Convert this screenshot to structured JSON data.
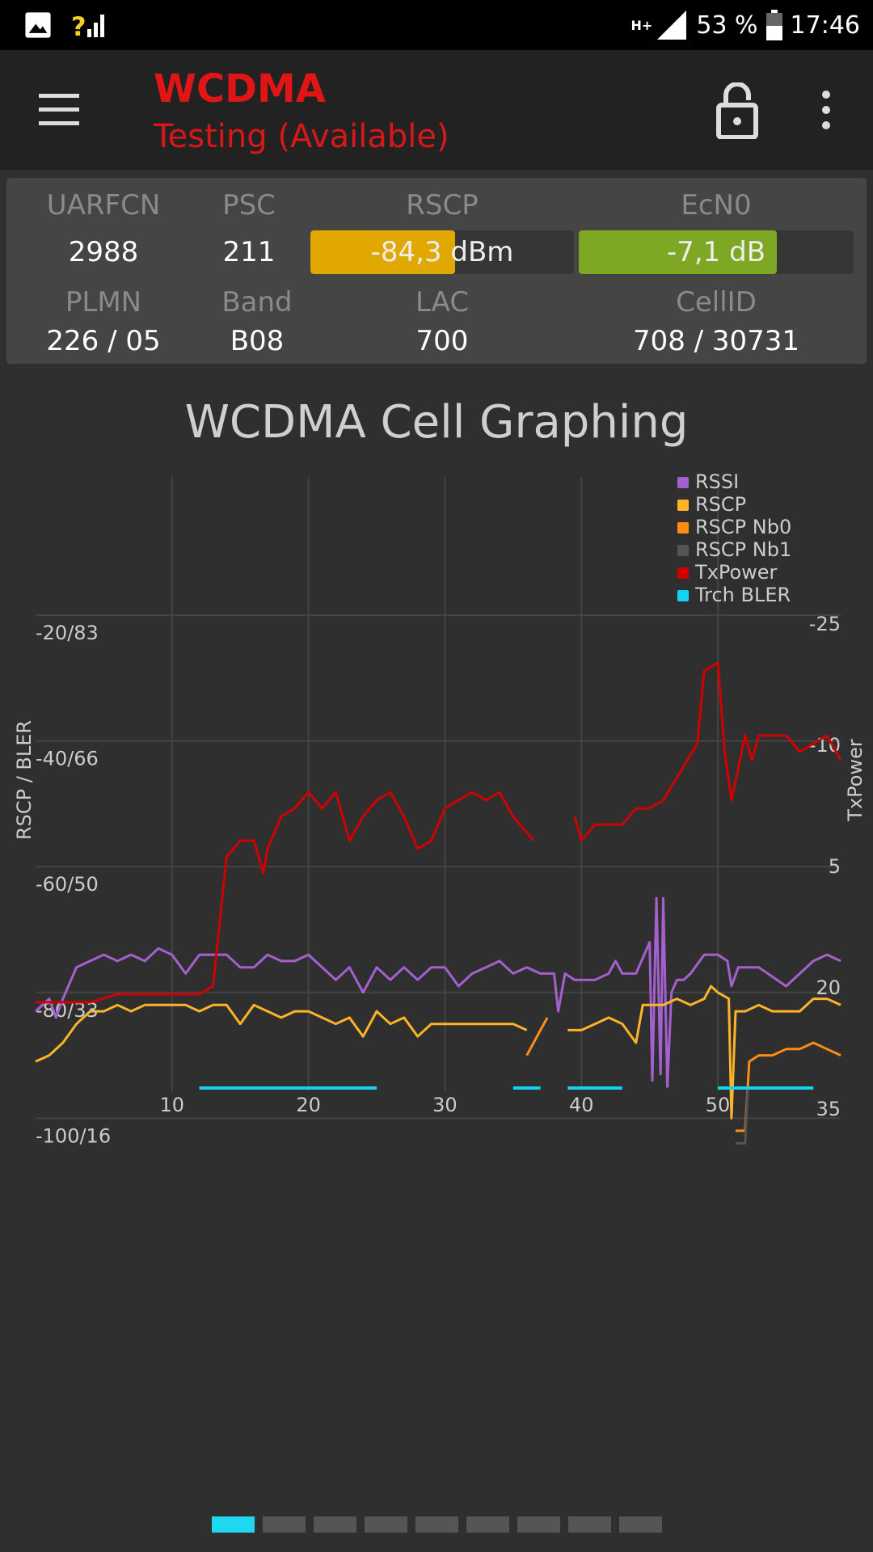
{
  "status_bar": {
    "sig_label": "?",
    "net_label": "H+",
    "battery": "53 %",
    "time": "17:46"
  },
  "app_bar": {
    "title": "WCDMA",
    "subtitle": "Testing (Available)"
  },
  "info": {
    "uarfcn_label": "UARFCN",
    "uarfcn": "2988",
    "psc_label": "PSC",
    "psc": "211",
    "rscp_label": "RSCP",
    "rscp": "-84,3 dBm",
    "rscp_fill": 0.55,
    "rscp_color": "#e0a800",
    "ecn0_label": "EcN0",
    "ecn0": "-7,1 dB",
    "ecn0_fill": 0.72,
    "ecn0_color": "#7ea824",
    "plmn_label": "PLMN",
    "plmn": "226 / 05",
    "band_label": "Band",
    "band": "B08",
    "lac_label": "LAC",
    "lac": "700",
    "cellid_label": "CellID",
    "cellid": "708 / 30731"
  },
  "chart_title": "WCDMA Cell Graphing",
  "chart_data": {
    "type": "line",
    "xlabel": "",
    "ylabel_left": "RSCP / BLER",
    "ylabel_right": "TxPower",
    "x_ticks": [
      10,
      20,
      30,
      40,
      50
    ],
    "xlim": [
      0,
      59
    ],
    "y_ticks_left": [
      "-20/83",
      "-40/66",
      "-60/50",
      "-80/33",
      "-100/16"
    ],
    "y_ticks_left_values": [
      -20,
      -40,
      -60,
      -80,
      -100
    ],
    "ylim_left": [
      -115,
      2
    ],
    "y_ticks_right": [
      -25,
      -10,
      5,
      20,
      35
    ],
    "ylim_right": [
      48,
      -43
    ],
    "legend_position": "top-right",
    "series": [
      {
        "name": "RSSI",
        "color": "#a560d0",
        "axis": "left",
        "points": [
          [
            0,
            -83
          ],
          [
            1,
            -81
          ],
          [
            1.5,
            -84
          ],
          [
            2,
            -81
          ],
          [
            3,
            -76
          ],
          [
            4,
            -75
          ],
          [
            5,
            -74
          ],
          [
            6,
            -75
          ],
          [
            7,
            -74
          ],
          [
            8,
            -75
          ],
          [
            9,
            -73
          ],
          [
            10,
            -74
          ],
          [
            11,
            -77
          ],
          [
            12,
            -74
          ],
          [
            13,
            -74
          ],
          [
            14,
            -74
          ],
          [
            15,
            -76
          ],
          [
            16,
            -76
          ],
          [
            17,
            -74
          ],
          [
            18,
            -75
          ],
          [
            19,
            -75
          ],
          [
            20,
            -74
          ],
          [
            21,
            -76
          ],
          [
            22,
            -78
          ],
          [
            23,
            -76
          ],
          [
            24,
            -80
          ],
          [
            25,
            -76
          ],
          [
            26,
            -78
          ],
          [
            27,
            -76
          ],
          [
            28,
            -78
          ],
          [
            29,
            -76
          ],
          [
            30,
            -76
          ],
          [
            31,
            -79
          ],
          [
            32,
            -77
          ],
          [
            33,
            -76
          ],
          [
            34,
            -75
          ],
          [
            35,
            -77
          ],
          [
            36,
            -76
          ],
          [
            37,
            -77
          ],
          [
            38,
            -77
          ],
          [
            38.3,
            -83
          ],
          [
            38.8,
            -77
          ],
          [
            39.5,
            -78
          ],
          [
            41,
            -78
          ],
          [
            42,
            -77
          ],
          [
            42.5,
            -75
          ],
          [
            43,
            -77
          ],
          [
            44,
            -77
          ],
          [
            45,
            -72
          ],
          [
            45.2,
            -94
          ],
          [
            45.5,
            -65
          ],
          [
            45.8,
            -93
          ],
          [
            46,
            -65
          ],
          [
            46.3,
            -95
          ],
          [
            46.6,
            -80
          ],
          [
            47,
            -78
          ],
          [
            47.5,
            -78
          ],
          [
            48,
            -77
          ],
          [
            49,
            -74
          ],
          [
            50,
            -74
          ],
          [
            50.7,
            -75
          ],
          [
            51,
            -79
          ],
          [
            51.5,
            -76
          ],
          [
            53,
            -76
          ],
          [
            55,
            -79
          ],
          [
            56,
            -77
          ],
          [
            57,
            -75
          ],
          [
            58,
            -74
          ],
          [
            59,
            -75
          ]
        ]
      },
      {
        "name": "RSCP",
        "color": "#ffb428",
        "axis": "left",
        "points": [
          [
            0,
            -91
          ],
          [
            1,
            -90
          ],
          [
            2,
            -88
          ],
          [
            3,
            -85
          ],
          [
            4,
            -83
          ],
          [
            5,
            -83
          ],
          [
            6,
            -82
          ],
          [
            7,
            -83
          ],
          [
            8,
            -82
          ],
          [
            9,
            -82
          ],
          [
            10,
            -82
          ],
          [
            11,
            -82
          ],
          [
            12,
            -83
          ],
          [
            13,
            -82
          ],
          [
            14,
            -82
          ],
          [
            15,
            -85
          ],
          [
            16,
            -82
          ],
          [
            17,
            -83
          ],
          [
            18,
            -84
          ],
          [
            19,
            -83
          ],
          [
            20,
            -83
          ],
          [
            21,
            -84
          ],
          [
            22,
            -85
          ],
          [
            23,
            -84
          ],
          [
            24,
            -87
          ],
          [
            25,
            -83
          ],
          [
            26,
            -85
          ],
          [
            27,
            -84
          ],
          [
            28,
            -87
          ],
          [
            29,
            -85
          ],
          [
            30,
            -85
          ],
          [
            31,
            -85
          ],
          [
            32,
            -85
          ],
          [
            33,
            -85
          ],
          [
            34,
            -85
          ],
          [
            35,
            -85
          ],
          [
            36,
            -86
          ],
          [
            39,
            -86
          ],
          [
            40,
            -86
          ],
          [
            41,
            -85
          ],
          [
            42,
            -84
          ],
          [
            43,
            -85
          ],
          [
            44,
            -88
          ],
          [
            44.5,
            -82
          ],
          [
            45,
            -82
          ],
          [
            46,
            -82
          ],
          [
            47,
            -81
          ],
          [
            48,
            -82
          ],
          [
            49,
            -81
          ],
          [
            49.5,
            -79
          ],
          [
            50,
            -80
          ],
          [
            50.8,
            -81
          ],
          [
            51,
            -100
          ],
          [
            51.3,
            -83
          ],
          [
            52,
            -83
          ],
          [
            53,
            -82
          ],
          [
            54,
            -83
          ],
          [
            55,
            -83
          ],
          [
            56,
            -83
          ],
          [
            57,
            -81
          ],
          [
            58,
            -81
          ],
          [
            59,
            -82
          ]
        ]
      },
      {
        "name": "RSCP Nb0",
        "color": "#ff8c14",
        "axis": "left",
        "points": [
          [
            36,
            -90
          ],
          [
            37,
            -86
          ],
          [
            37.5,
            -84
          ],
          [
            51.3,
            -102
          ],
          [
            52,
            -102
          ],
          [
            52.3,
            -91
          ],
          [
            53,
            -90
          ],
          [
            54,
            -90
          ],
          [
            55,
            -89
          ],
          [
            56,
            -89
          ],
          [
            57,
            -88
          ],
          [
            58,
            -89
          ],
          [
            59,
            -90
          ]
        ]
      },
      {
        "name": "RSCP Nb1",
        "color": "#555555",
        "axis": "left",
        "points": [
          [
            51.3,
            -104
          ],
          [
            52,
            -104
          ],
          [
            52.2,
            -95
          ]
        ]
      },
      {
        "name": "TxPower",
        "color": "#d00000",
        "axis": "right",
        "points": [
          [
            0,
            22
          ],
          [
            2,
            22
          ],
          [
            4,
            22
          ],
          [
            6,
            21
          ],
          [
            8,
            21
          ],
          [
            10,
            21
          ],
          [
            11,
            21
          ],
          [
            12,
            21
          ],
          [
            13,
            20
          ],
          [
            14,
            4
          ],
          [
            15,
            2
          ],
          [
            16,
            2
          ],
          [
            16.7,
            6
          ],
          [
            17,
            3
          ],
          [
            18,
            -1
          ],
          [
            19,
            -2
          ],
          [
            20,
            -4
          ],
          [
            21,
            -2
          ],
          [
            22,
            -4
          ],
          [
            23,
            2
          ],
          [
            24,
            -1
          ],
          [
            25,
            -3
          ],
          [
            26,
            -4
          ],
          [
            27,
            -1
          ],
          [
            28,
            3
          ],
          [
            29,
            2
          ],
          [
            30,
            -2
          ],
          [
            31,
            -3
          ],
          [
            32,
            -4
          ],
          [
            33,
            -3
          ],
          [
            34,
            -4
          ],
          [
            35,
            -1
          ],
          [
            36,
            1
          ],
          [
            36.5,
            2
          ],
          [
            39.5,
            -1
          ],
          [
            40,
            2
          ],
          [
            41,
            0
          ],
          [
            43,
            0
          ],
          [
            44,
            -2
          ],
          [
            45,
            -2
          ],
          [
            46,
            -3
          ],
          [
            48.5,
            -10
          ],
          [
            49,
            -19
          ],
          [
            50,
            -20
          ],
          [
            50.5,
            -9
          ],
          [
            51,
            -3
          ],
          [
            51.5,
            -7
          ],
          [
            52,
            -11
          ],
          [
            52.5,
            -8
          ],
          [
            53,
            -11
          ],
          [
            55,
            -11
          ],
          [
            56,
            -9
          ],
          [
            57,
            -10
          ],
          [
            58,
            -11
          ],
          [
            59,
            -8
          ]
        ]
      },
      {
        "name": "Trch BLER",
        "color": "#12d4f0",
        "axis": "left",
        "points": []
      }
    ],
    "bler_segments": [
      [
        12,
        25
      ],
      [
        35,
        37
      ],
      [
        39,
        43
      ],
      [
        50,
        57
      ]
    ]
  },
  "pager": {
    "count": 9,
    "active": 0
  }
}
